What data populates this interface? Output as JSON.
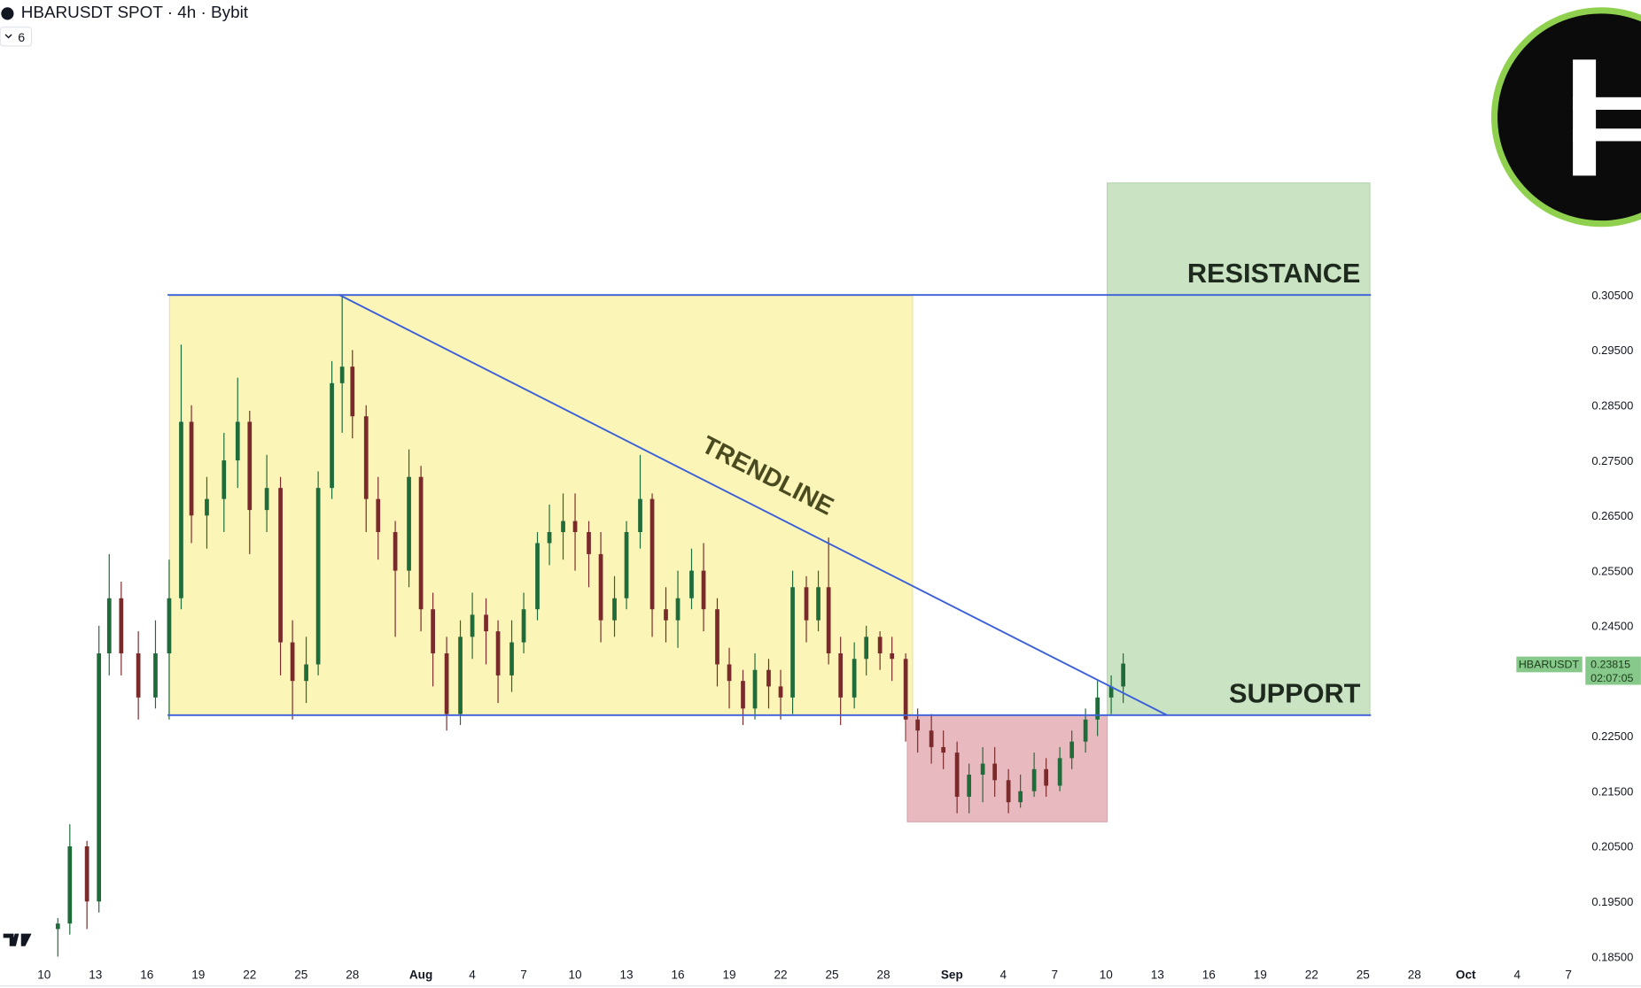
{
  "chart_data": {
    "type": "candlestick",
    "title": "HBARUSDT SPOT · 4h · Bybit",
    "indicator_count": "6",
    "symbol": "HBARUSDT",
    "last_price": 0.23815,
    "last_price_label": "0.23815",
    "countdown": "02:07:05",
    "trendline_label": "TRENDLINE",
    "levels": [
      {
        "name": "RESISTANCE",
        "value": 0.305
      },
      {
        "name": "SUPPORT",
        "value": 0.2288
      }
    ],
    "up_color": "#1f6b3a",
    "down_color": "#7a2a2a",
    "xlim": [
      -2.57,
      89.68
    ],
    "ylim": [
      0.18405,
      0.3585
    ],
    "xticks": [
      {
        "value": 0,
        "label": "10"
      },
      {
        "value": 3,
        "label": "13"
      },
      {
        "value": 6,
        "label": "16"
      },
      {
        "value": 9,
        "label": "19"
      },
      {
        "value": 12,
        "label": "22"
      },
      {
        "value": 15,
        "label": "25"
      },
      {
        "value": 18,
        "label": "28"
      },
      {
        "value": 22,
        "label": "Aug"
      },
      {
        "value": 25,
        "label": "4"
      },
      {
        "value": 28,
        "label": "7"
      },
      {
        "value": 31,
        "label": "10"
      },
      {
        "value": 34,
        "label": "13"
      },
      {
        "value": 37,
        "label": "16"
      },
      {
        "value": 40,
        "label": "19"
      },
      {
        "value": 43,
        "label": "22"
      },
      {
        "value": 46,
        "label": "25"
      },
      {
        "value": 49,
        "label": "28"
      },
      {
        "value": 53,
        "label": "Sep"
      },
      {
        "value": 56,
        "label": "4"
      },
      {
        "value": 59,
        "label": "7"
      },
      {
        "value": 62,
        "label": "10"
      },
      {
        "value": 65,
        "label": "13"
      },
      {
        "value": 68,
        "label": "16"
      },
      {
        "value": 71,
        "label": "19"
      },
      {
        "value": 74,
        "label": "22"
      },
      {
        "value": 77,
        "label": "25"
      },
      {
        "value": 80,
        "label": "28"
      },
      {
        "value": 83,
        "label": "Oct"
      },
      {
        "value": 86,
        "label": "4"
      },
      {
        "value": 89,
        "label": "7"
      }
    ],
    "yticks": [
      {
        "value": 0.185,
        "label": "0.18500"
      },
      {
        "value": 0.195,
        "label": "0.19500"
      },
      {
        "value": 0.205,
        "label": "0.20500"
      },
      {
        "value": 0.215,
        "label": "0.21500"
      },
      {
        "value": 0.225,
        "label": "0.22500"
      },
      {
        "value": 0.245,
        "label": "0.24500"
      },
      {
        "value": 0.255,
        "label": "0.25500"
      },
      {
        "value": 0.265,
        "label": "0.26500"
      },
      {
        "value": 0.275,
        "label": "0.27500"
      },
      {
        "value": 0.285,
        "label": "0.28500"
      },
      {
        "value": 0.295,
        "label": "0.29500"
      },
      {
        "value": 0.305,
        "label": "0.30500"
      }
    ],
    "x": [
      0.8,
      1.5,
      2.5,
      3.2,
      3.8,
      4.5,
      5.5,
      6.5,
      7.3,
      8,
      8.6,
      9.5,
      10.5,
      11.3,
      12,
      13,
      13.8,
      14.5,
      15.3,
      16,
      16.8,
      17.4,
      18,
      18.8,
      19.5,
      20.5,
      21.3,
      22,
      22.7,
      23.5,
      24.3,
      25,
      25.8,
      26.5,
      27.3,
      28,
      28.8,
      29.5,
      30.3,
      31,
      31.8,
      32.5,
      33.3,
      34,
      34.8,
      35.5,
      36.3,
      37,
      37.8,
      38.5,
      39.3,
      40,
      40.8,
      41.5,
      42.3,
      43,
      43.7,
      44.5,
      45.2,
      45.8,
      46.5,
      47.3,
      48,
      48.8,
      49.5,
      50.3,
      51,
      51.8,
      52.5,
      53.3,
      54,
      54.8,
      55.5,
      56.3,
      57,
      57.8,
      58.5,
      59.3,
      60,
      60.8,
      61.5,
      62.3,
      63
    ],
    "open": [
      0.19,
      0.191,
      0.205,
      0.195,
      0.24,
      0.25,
      0.24,
      0.232,
      0.24,
      0.25,
      0.282,
      0.265,
      0.268,
      0.275,
      0.282,
      0.266,
      0.27,
      0.242,
      0.235,
      0.238,
      0.27,
      0.289,
      0.292,
      0.283,
      0.268,
      0.262,
      0.255,
      0.272,
      0.248,
      0.24,
      0.229,
      0.243,
      0.247,
      0.244,
      0.236,
      0.242,
      0.248,
      0.26,
      0.262,
      0.264,
      0.262,
      0.258,
      0.246,
      0.25,
      0.262,
      0.268,
      0.248,
      0.246,
      0.25,
      0.255,
      0.248,
      0.238,
      0.235,
      0.23,
      0.237,
      0.234,
      0.232,
      0.252,
      0.246,
      0.252,
      0.24,
      0.232,
      0.239,
      0.243,
      0.24,
      0.239,
      0.228,
      0.226,
      0.223,
      0.222,
      0.214,
      0.218,
      0.22,
      0.217,
      0.213,
      0.215,
      0.219,
      0.216,
      0.221,
      0.224,
      0.228,
      0.232,
      0.234
    ],
    "high": [
      0.192,
      0.209,
      0.206,
      0.245,
      0.258,
      0.253,
      0.244,
      0.246,
      0.257,
      0.296,
      0.285,
      0.272,
      0.28,
      0.29,
      0.284,
      0.276,
      0.272,
      0.246,
      0.243,
      0.273,
      0.293,
      0.305,
      0.295,
      0.285,
      0.272,
      0.264,
      0.277,
      0.274,
      0.251,
      0.243,
      0.246,
      0.251,
      0.25,
      0.246,
      0.246,
      0.251,
      0.262,
      0.267,
      0.269,
      0.269,
      0.264,
      0.262,
      0.254,
      0.264,
      0.276,
      0.269,
      0.252,
      0.255,
      0.259,
      0.26,
      0.25,
      0.241,
      0.237,
      0.24,
      0.239,
      0.237,
      0.255,
      0.254,
      0.255,
      0.261,
      0.243,
      0.242,
      0.245,
      0.244,
      0.243,
      0.24,
      0.23,
      0.229,
      0.226,
      0.224,
      0.22,
      0.223,
      0.223,
      0.219,
      0.218,
      0.222,
      0.221,
      0.223,
      0.226,
      0.23,
      0.235,
      0.236,
      0.24
    ],
    "low": [
      0.185,
      0.189,
      0.19,
      0.193,
      0.236,
      0.236,
      0.228,
      0.23,
      0.228,
      0.248,
      0.26,
      0.259,
      0.262,
      0.27,
      0.258,
      0.262,
      0.236,
      0.228,
      0.231,
      0.236,
      0.268,
      0.28,
      0.279,
      0.262,
      0.257,
      0.243,
      0.252,
      0.244,
      0.234,
      0.226,
      0.227,
      0.239,
      0.238,
      0.231,
      0.233,
      0.24,
      0.246,
      0.256,
      0.257,
      0.255,
      0.252,
      0.242,
      0.243,
      0.248,
      0.259,
      0.243,
      0.242,
      0.241,
      0.248,
      0.244,
      0.234,
      0.23,
      0.227,
      0.228,
      0.23,
      0.228,
      0.229,
      0.242,
      0.244,
      0.238,
      0.227,
      0.23,
      0.236,
      0.237,
      0.235,
      0.224,
      0.222,
      0.22,
      0.219,
      0.211,
      0.211,
      0.213,
      0.214,
      0.211,
      0.212,
      0.214,
      0.214,
      0.215,
      0.219,
      0.222,
      0.225,
      0.229,
      0.231
    ],
    "close": [
      0.191,
      0.205,
      0.195,
      0.24,
      0.25,
      0.24,
      0.232,
      0.24,
      0.25,
      0.282,
      0.265,
      0.268,
      0.275,
      0.282,
      0.266,
      0.27,
      0.242,
      0.235,
      0.238,
      0.27,
      0.289,
      0.292,
      0.283,
      0.268,
      0.262,
      0.255,
      0.272,
      0.248,
      0.24,
      0.229,
      0.243,
      0.247,
      0.244,
      0.236,
      0.242,
      0.248,
      0.26,
      0.262,
      0.264,
      0.262,
      0.258,
      0.246,
      0.25,
      0.262,
      0.268,
      0.248,
      0.246,
      0.25,
      0.255,
      0.248,
      0.238,
      0.235,
      0.23,
      0.237,
      0.234,
      0.232,
      0.252,
      0.246,
      0.252,
      0.24,
      0.232,
      0.239,
      0.243,
      0.24,
      0.239,
      0.228,
      0.226,
      0.223,
      0.222,
      0.214,
      0.218,
      0.22,
      0.217,
      0.213,
      0.215,
      0.219,
      0.216,
      0.221,
      0.224,
      0.228,
      0.232,
      0.234,
      0.23815
    ]
  }
}
